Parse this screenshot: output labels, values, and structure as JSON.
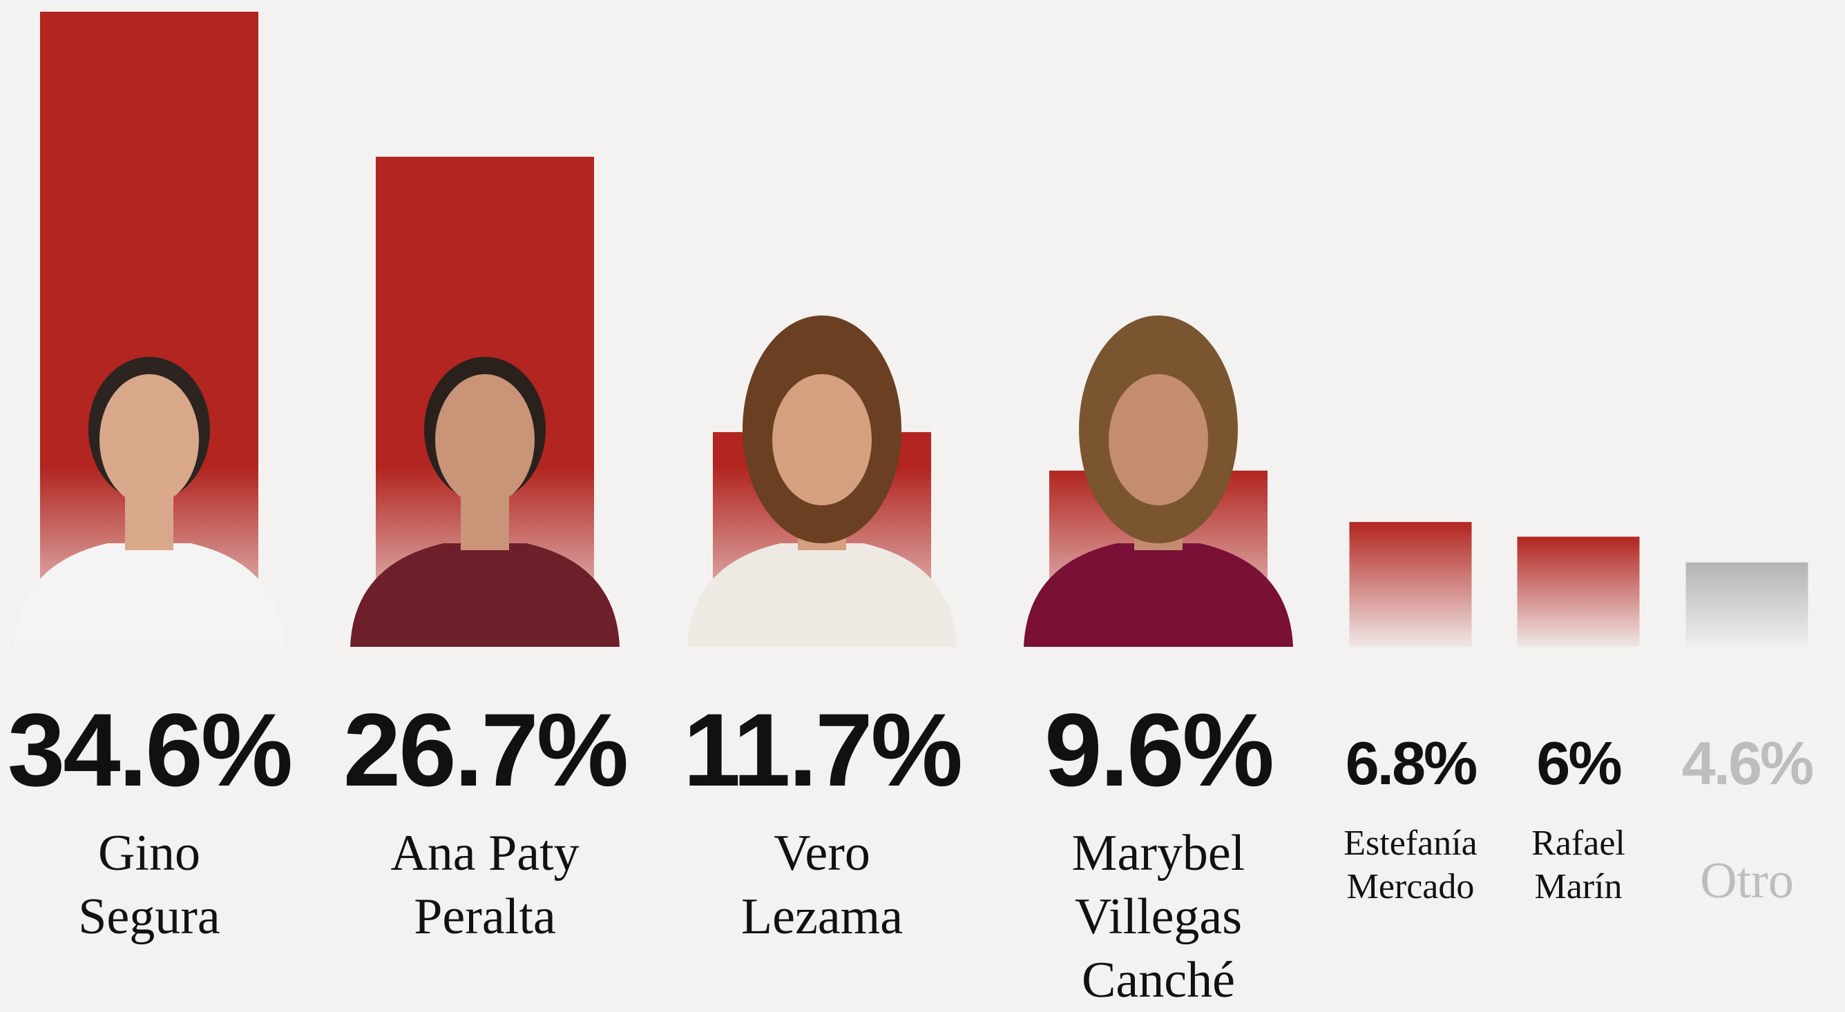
{
  "chart_data": {
    "type": "bar",
    "categories": [
      "Gino Segura",
      "Ana Paty Peralta",
      "Vero Lezama",
      "Marybel Villegas Canché",
      "Estefanía Mercado",
      "Rafael Marín",
      "Otro"
    ],
    "values": [
      34.6,
      26.7,
      11.7,
      9.6,
      6.8,
      6,
      4.6
    ],
    "value_labels": [
      "34.6%",
      "26.7%",
      "11.7%",
      "9.6%",
      "6.8%",
      "6%",
      "4.6%"
    ],
    "colors": [
      "#b22520",
      "#b22520",
      "#b22520",
      "#b22520",
      "#b22520",
      "#b22520",
      "#b4b4b5"
    ]
  }
}
